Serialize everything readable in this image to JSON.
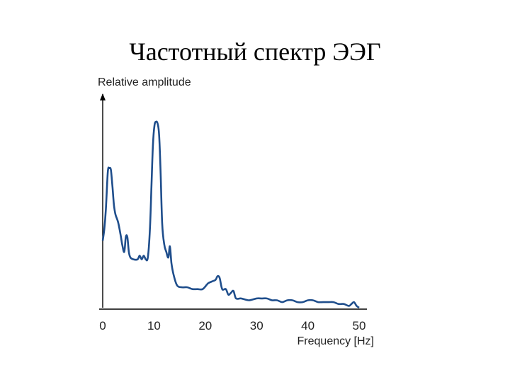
{
  "title": "Частотный спектр ЭЭГ",
  "chart_data": {
    "type": "line",
    "ylabel": "Relative amplitude",
    "xlabel": "Frequency [Hz]",
    "xlim": [
      0,
      50
    ],
    "x_ticks": [
      0,
      10,
      20,
      30,
      40,
      50
    ],
    "grid": false,
    "colors": {
      "series": "#1f4e8c",
      "axis": "#000000"
    },
    "series": [
      {
        "x": [
          0,
          0.3,
          0.6,
          1,
          1.3,
          1.6,
          1.9,
          2.2,
          2.5,
          3,
          3.5,
          3.8,
          4.2,
          4.5,
          4.8,
          5.1,
          5.4,
          6,
          6.8,
          7.2,
          7.6,
          8,
          8.4,
          8.8,
          9.2,
          9.5,
          9.8,
          10.1,
          10.4,
          10.7,
          11,
          11.3,
          11.6,
          12,
          12.4,
          12.8,
          13.1,
          13.4,
          13.8,
          14.5,
          15.5,
          16.5,
          17.5,
          18.5,
          19.5,
          20.5,
          21.2,
          22,
          22.4,
          22.8,
          23.3,
          24,
          24.5,
          25,
          25.5,
          26,
          27,
          28.5,
          30,
          31,
          32,
          33,
          34,
          35,
          36,
          37,
          38,
          39,
          40,
          41,
          42,
          43,
          44,
          45,
          46,
          47,
          48,
          48.5,
          49,
          49.5,
          50
        ],
        "y": [
          0.36,
          0.42,
          0.52,
          0.73,
          0.75,
          0.74,
          0.65,
          0.55,
          0.5,
          0.46,
          0.39,
          0.34,
          0.3,
          0.38,
          0.38,
          0.3,
          0.27,
          0.26,
          0.26,
          0.28,
          0.26,
          0.28,
          0.26,
          0.27,
          0.42,
          0.65,
          0.88,
          0.98,
          1.0,
          0.99,
          0.93,
          0.72,
          0.45,
          0.34,
          0.3,
          0.27,
          0.33,
          0.24,
          0.18,
          0.12,
          0.11,
          0.11,
          0.1,
          0.1,
          0.1,
          0.13,
          0.14,
          0.15,
          0.17,
          0.16,
          0.1,
          0.1,
          0.07,
          0.08,
          0.09,
          0.05,
          0.05,
          0.04,
          0.05,
          0.05,
          0.05,
          0.04,
          0.04,
          0.03,
          0.04,
          0.04,
          0.03,
          0.03,
          0.04,
          0.04,
          0.03,
          0.03,
          0.03,
          0.03,
          0.02,
          0.02,
          0.01,
          0.02,
          0.03,
          0.01,
          0
        ]
      }
    ]
  }
}
